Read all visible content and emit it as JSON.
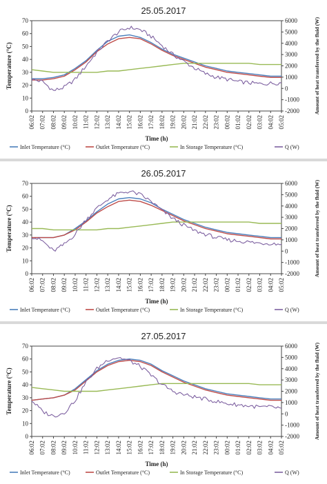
{
  "chart_data": [
    {
      "type": "line",
      "title": "25.05.2017",
      "xlabel": "Time (h)",
      "ylabel": "Temperature (°C)",
      "y2label": "Amount of heat transferred by the fluid (W)",
      "ylim": [
        0,
        70
      ],
      "y2lim": [
        -2000,
        6000
      ],
      "yticks": [
        "0",
        "10",
        "20",
        "30",
        "40",
        "50",
        "60",
        "70"
      ],
      "y2ticks": [
        "-2000",
        "-1000",
        "0",
        "1000",
        "2000",
        "3000",
        "4000",
        "5000",
        "6000"
      ],
      "categories": [
        "06:02",
        "07:02",
        "08:02",
        "09:02",
        "10:02",
        "11:02",
        "12:02",
        "13:02",
        "14:02",
        "15:02",
        "16:02",
        "17:02",
        "18:02",
        "19:02",
        "20:02",
        "21:02",
        "22:02",
        "23:02",
        "00:02",
        "01:02",
        "02:02",
        "03:02",
        "04:02",
        "05:02"
      ],
      "legend_position": "bottom",
      "series": [
        {
          "name": "Inlet Temperature (°C)",
          "axis": "left",
          "color": "#4a7ebb",
          "values": [
            25,
            25,
            26,
            28,
            33,
            39,
            47,
            54,
            58,
            59,
            57,
            53,
            48,
            44,
            41,
            38,
            35,
            33,
            31,
            30,
            29,
            28,
            27,
            27
          ]
        },
        {
          "name": "Outlet Temperature (°C)",
          "axis": "left",
          "color": "#be4b48",
          "values": [
            24,
            24,
            25,
            27,
            32,
            38,
            46,
            52,
            56,
            57,
            56,
            52,
            47,
            43,
            40,
            37,
            34,
            32,
            30,
            29,
            28,
            27,
            26,
            26
          ]
        },
        {
          "name": "In Storage Temperature (°C)",
          "axis": "left",
          "color": "#98b954",
          "values": [
            32,
            31,
            30,
            30,
            30,
            30,
            30,
            31,
            31,
            32,
            33,
            34,
            35,
            36,
            37,
            37,
            37,
            37,
            37,
            37,
            37,
            36,
            36,
            36
          ]
        },
        {
          "name": "Q (W)",
          "axis": "right",
          "color": "#7d60a0",
          "values": [
            800,
            600,
            -200,
            100,
            800,
            2000,
            3200,
            4200,
            5000,
            5400,
            5200,
            4600,
            3800,
            3000,
            2400,
            1800,
            1300,
            1000,
            800,
            600,
            500,
            400,
            450,
            500
          ]
        }
      ]
    },
    {
      "type": "line",
      "title": "26.05.2017",
      "xlabel": "Time (h)",
      "ylabel": "Temperature (°C)",
      "y2label": "Amount of heat transferred by the fluid (W)",
      "ylim": [
        0,
        70
      ],
      "y2lim": [
        -2000,
        6000
      ],
      "yticks": [
        "0",
        "10",
        "20",
        "30",
        "40",
        "50",
        "60",
        "70"
      ],
      "y2ticks": [
        "-2000",
        "-1000",
        "0",
        "1000",
        "2000",
        "3000",
        "4000",
        "5000",
        "6000"
      ],
      "categories": [
        "06:02",
        "07:02",
        "08:02",
        "09:02",
        "10:02",
        "11:02",
        "12:02",
        "13:02",
        "14:02",
        "15:02",
        "16:02",
        "17:02",
        "18:02",
        "19:02",
        "20:02",
        "21:02",
        "22:02",
        "23:02",
        "00:02",
        "01:02",
        "02:02",
        "03:02",
        "04:02",
        "05:02"
      ],
      "legend_position": "bottom",
      "series": [
        {
          "name": "Inlet Temperature (°C)",
          "axis": "left",
          "color": "#4a7ebb",
          "values": [
            28,
            28,
            28,
            30,
            35,
            41,
            48,
            54,
            58,
            59,
            58,
            55,
            50,
            46,
            42,
            39,
            36,
            34,
            32,
            31,
            30,
            29,
            28,
            28
          ]
        },
        {
          "name": "Outlet Temperature (°C)",
          "axis": "left",
          "color": "#be4b48",
          "values": [
            28,
            28,
            28,
            30,
            34,
            40,
            47,
            52,
            56,
            57,
            56,
            53,
            49,
            45,
            41,
            38,
            35,
            33,
            31,
            30,
            29,
            28,
            27,
            27
          ]
        },
        {
          "name": "In Storage Temperature (°C)",
          "axis": "left",
          "color": "#98b954",
          "values": [
            35,
            35,
            34,
            34,
            34,
            34,
            34,
            35,
            35,
            36,
            37,
            38,
            39,
            40,
            40,
            40,
            40,
            40,
            40,
            40,
            40,
            39,
            39,
            39
          ]
        },
        {
          "name": "Q (W)",
          "axis": "right",
          "color": "#7d60a0",
          "values": [
            1300,
            900,
            0,
            600,
            1500,
            2800,
            3800,
            4600,
            5100,
            5300,
            5000,
            4400,
            3600,
            2900,
            2300,
            1800,
            1500,
            1200,
            1000,
            900,
            800,
            700,
            700,
            600
          ]
        }
      ]
    },
    {
      "type": "line",
      "title": "27.05.2017",
      "xlabel": "Time (h)",
      "ylabel": "Temperature (°C)",
      "y2label": "Amount of heat transferred by the fluid (W)",
      "ylim": [
        0,
        70
      ],
      "y2lim": [
        -2000,
        6000
      ],
      "yticks": [
        "0",
        "10",
        "20",
        "30",
        "40",
        "50",
        "60",
        "70"
      ],
      "y2ticks": [
        "-2000",
        "-1000",
        "0",
        "1000",
        "2000",
        "3000",
        "4000",
        "5000",
        "6000"
      ],
      "categories": [
        "06:02",
        "07:02",
        "08:02",
        "09:02",
        "10:02",
        "11:02",
        "12:02",
        "13:02",
        "14:02",
        "15:02",
        "16:02",
        "17:02",
        "18:02",
        "19:02",
        "20:02",
        "21:02",
        "22:02",
        "23:02",
        "00:02",
        "01:02",
        "02:02",
        "03:02",
        "04:02",
        "05:02"
      ],
      "legend_position": "bottom",
      "series": [
        {
          "name": "Inlet Temperature (°C)",
          "axis": "left",
          "color": "#4a7ebb",
          "values": [
            28,
            29,
            30,
            32,
            37,
            44,
            51,
            56,
            59,
            60,
            59,
            56,
            51,
            47,
            43,
            40,
            37,
            35,
            33,
            32,
            31,
            30,
            29,
            29
          ]
        },
        {
          "name": "Outlet Temperature (°C)",
          "axis": "left",
          "color": "#be4b48",
          "values": [
            28,
            29,
            30,
            32,
            36,
            43,
            50,
            55,
            58,
            59,
            58,
            55,
            50,
            46,
            42,
            39,
            36,
            34,
            32,
            31,
            30,
            29,
            28,
            28
          ]
        },
        {
          "name": "In Storage Temperature (°C)",
          "axis": "left",
          "color": "#98b954",
          "values": [
            38,
            37,
            36,
            35,
            35,
            35,
            35,
            36,
            37,
            38,
            39,
            40,
            41,
            41,
            41,
            41,
            41,
            41,
            41,
            41,
            41,
            40,
            40,
            40
          ]
        },
        {
          "name": "Q (W)",
          "axis": "right",
          "color": "#7d60a0",
          "values": [
            1200,
            200,
            -200,
            100,
            1200,
            2800,
            4000,
            4800,
            5000,
            4700,
            4200,
            3400,
            2600,
            2000,
            1700,
            1500,
            1300,
            1100,
            900,
            800,
            700,
            600,
            600,
            500
          ]
        }
      ]
    }
  ]
}
